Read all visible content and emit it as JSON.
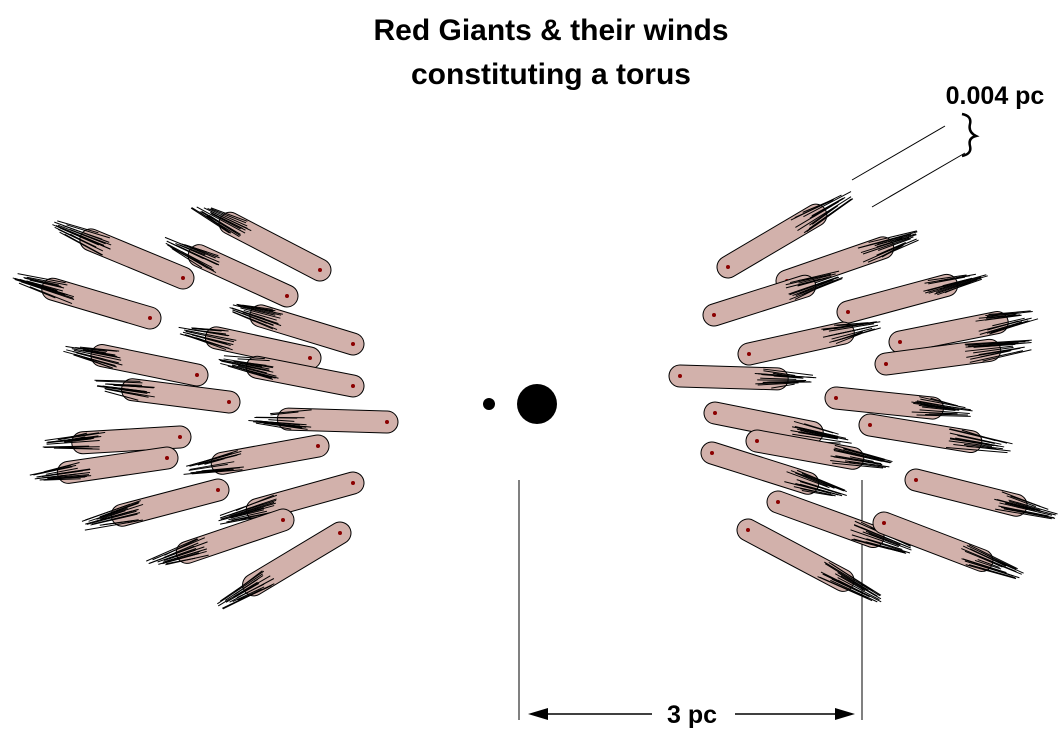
{
  "title": {
    "lines": [
      "Red Giants & their winds",
      "constituting a torus"
    ]
  },
  "labels": {
    "width": "0.004 pc",
    "distance": "3 pc"
  }
}
